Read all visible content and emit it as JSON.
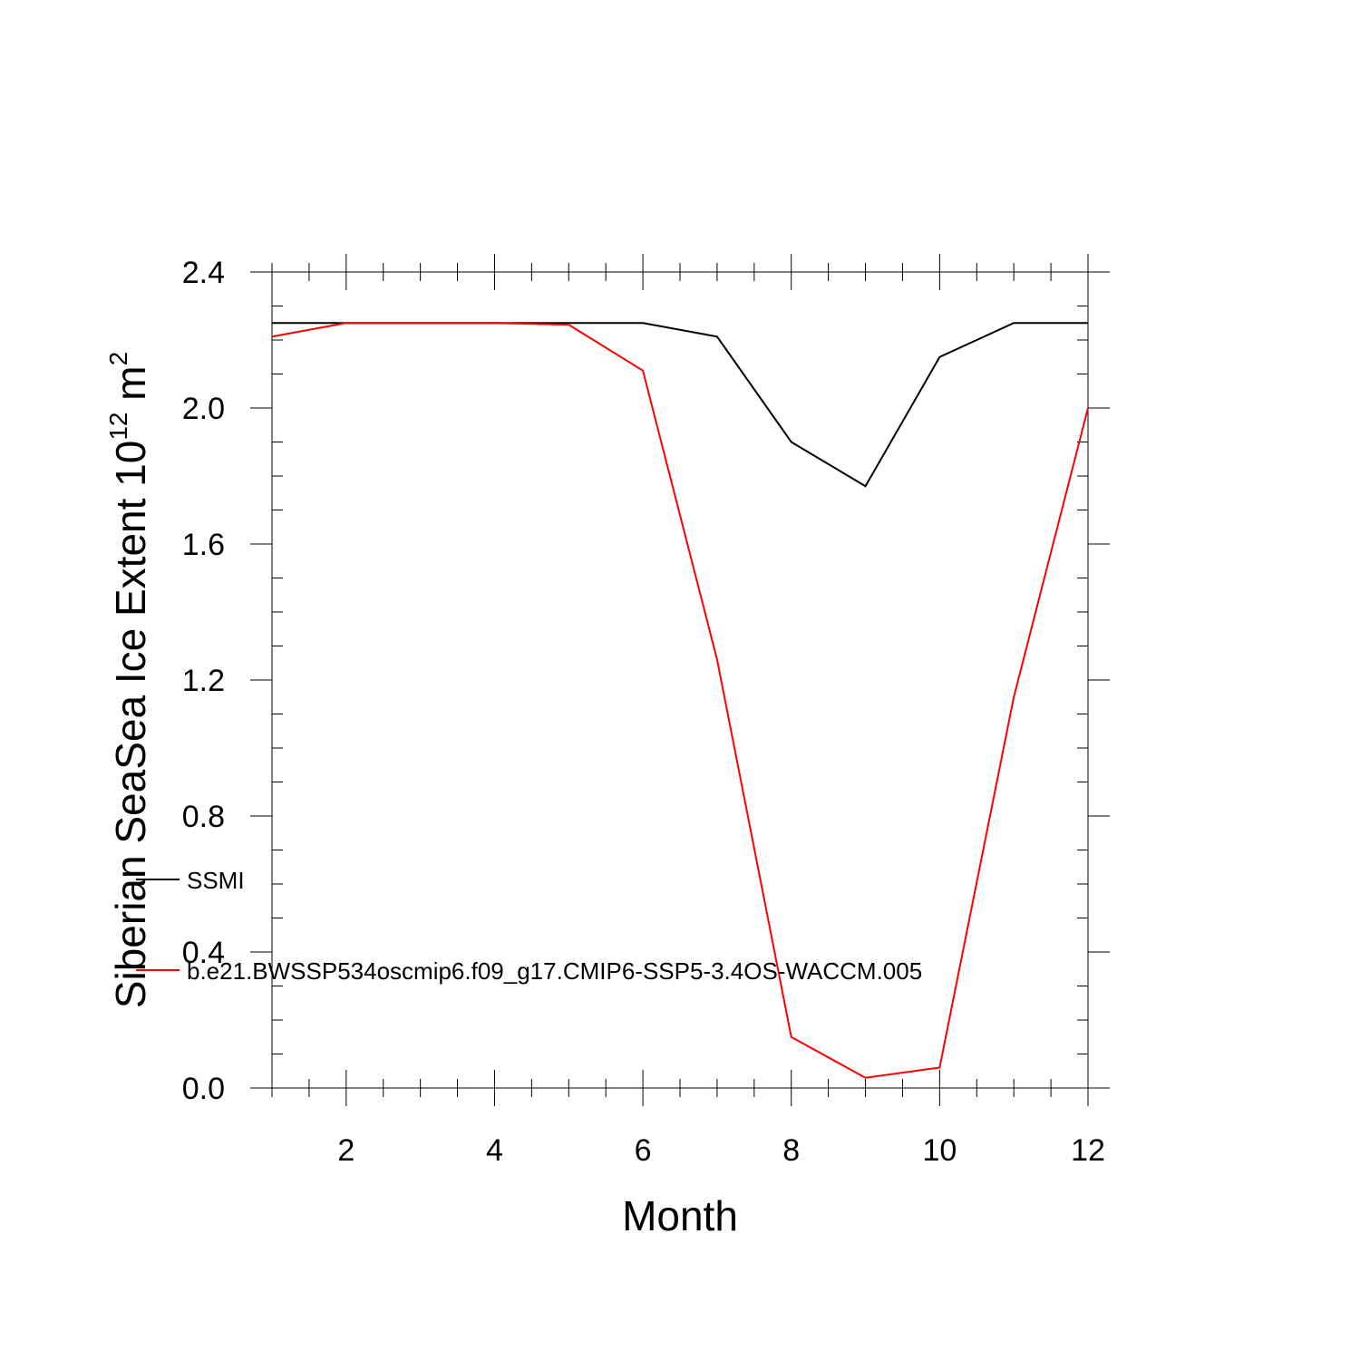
{
  "chart_data": {
    "type": "line",
    "xlabel": "Month",
    "ylabel": {
      "main": "Siberian SeaSea Ice Extent 10",
      "sup1": "12",
      "unit": " m",
      "sup2": "2"
    },
    "xlim": [
      1,
      12
    ],
    "ylim": [
      0,
      2.4
    ],
    "x_ticks": [
      2,
      4,
      6,
      8,
      10,
      12
    ],
    "x_tick_labels": [
      "2",
      "4",
      "6",
      "8",
      "10",
      "12"
    ],
    "y_ticks": [
      0,
      0.4,
      0.8,
      1.2,
      1.6,
      2.0,
      2.4
    ],
    "y_tick_labels": [
      "0.0",
      "0.4",
      "0.8",
      "1.2",
      "1.6",
      "2.0",
      "2.4"
    ],
    "x": [
      1,
      2,
      3,
      4,
      5,
      6,
      7,
      8,
      9,
      10,
      11,
      12
    ],
    "series": [
      {
        "name": "SSMI",
        "color": "#000000",
        "values": [
          2.25,
          2.25,
          2.25,
          2.25,
          2.25,
          2.25,
          2.21,
          1.9,
          1.77,
          2.15,
          2.25,
          2.25
        ]
      },
      {
        "name": "b.e21.BWSSP534oscmip6.f09_g17.CMIP6-SSP5-3.4OS-WACCM.005",
        "color": "#ff0000",
        "values": [
          2.21,
          2.25,
          2.25,
          2.25,
          2.245,
          2.11,
          1.26,
          0.15,
          0.03,
          0.06,
          1.15,
          2.0
        ]
      }
    ],
    "legend": "inside-left"
  }
}
